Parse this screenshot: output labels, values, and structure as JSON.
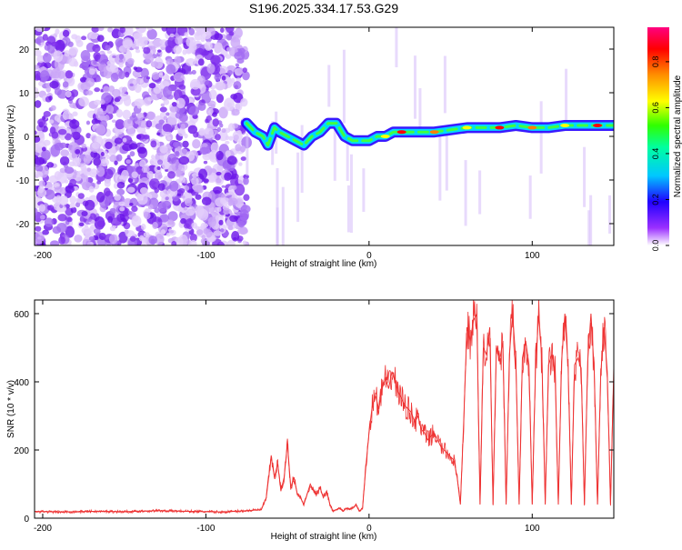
{
  "title": "S196.2025.334.17.53.G29",
  "chart_data": [
    {
      "type": "heatmap",
      "name": "spectrogram",
      "xlabel": "Height of straight line (km)",
      "ylabel": "Frequency (Hz)",
      "xlim": [
        -205,
        150
      ],
      "ylim": [
        -25,
        25
      ],
      "xticks": [
        -200,
        -100,
        0,
        100
      ],
      "xtick_labels": [
        "-200",
        "-100",
        "0",
        "100"
      ],
      "yticks": [
        -20,
        -10,
        0,
        10,
        20
      ],
      "ytick_labels": [
        "-20",
        "-10",
        "0",
        "10",
        "20"
      ],
      "noise_region_x": [
        -205,
        -75
      ],
      "dominant_frequency_trace": {
        "x": [
          -75,
          -70,
          -65,
          -62,
          -58,
          -55,
          -50,
          -45,
          -40,
          -35,
          -30,
          -25,
          -20,
          -15,
          -10,
          -5,
          0,
          5,
          10,
          15,
          20,
          30,
          40,
          50,
          60,
          70,
          80,
          90,
          100,
          110,
          120,
          130,
          140,
          150
        ],
        "y": [
          3,
          1,
          0,
          -2,
          2,
          1,
          0,
          -1,
          -2,
          0,
          1,
          3,
          3,
          0,
          -1,
          -1,
          -1,
          0,
          0,
          1,
          1,
          1,
          1,
          1.5,
          2,
          2,
          2,
          2.5,
          2,
          2,
          2.5,
          2.5,
          2.5,
          2.5
        ]
      },
      "colorbar": {
        "label": "Normalized spectral amplitude",
        "min": 0,
        "max": 0.95,
        "ticks": [
          0.0,
          0.2,
          0.4,
          0.6,
          0.8
        ],
        "tick_labels": [
          "0.0",
          "0.2",
          "0.4",
          "0.6",
          "0.8"
        ]
      },
      "colors": {
        "colormap": [
          "#ffffff",
          "#8000ff",
          "#0000ff",
          "#00ffff",
          "#00ff00",
          "#ffff00",
          "#ff8000",
          "#ff0000",
          "#ff0080"
        ],
        "noise": "#7f1dff"
      }
    },
    {
      "type": "line",
      "name": "snr",
      "xlabel": "Height of straight line (km)",
      "ylabel": "SNR (10 * v/v)",
      "xlim": [
        -205,
        150
      ],
      "ylim": [
        0,
        640
      ],
      "xticks": [
        -200,
        -100,
        0,
        100
      ],
      "xtick_labels": [
        "-200",
        "-100",
        "0",
        "100"
      ],
      "yticks": [
        0,
        200,
        400,
        600
      ],
      "ytick_labels": [
        "0",
        "200",
        "400",
        "600"
      ],
      "line_color": "#ee3333",
      "x": [
        -205,
        -190,
        -170,
        -150,
        -130,
        -110,
        -90,
        -75,
        -66,
        -63,
        -60,
        -58,
        -56,
        -54,
        -52,
        -50,
        -48,
        -46,
        -44,
        -42,
        -40,
        -38,
        -36,
        -34,
        -32,
        -30,
        -28,
        -26,
        -24,
        -22,
        -20,
        -18,
        -16,
        -14,
        -12,
        -10,
        -8,
        -6,
        -4,
        -2,
        0,
        2,
        4,
        6,
        8,
        10,
        12,
        14,
        16,
        18,
        20,
        22,
        24,
        26,
        28,
        30,
        32,
        34,
        36,
        38,
        40,
        42,
        44,
        46,
        48,
        50,
        52,
        54,
        56,
        58,
        60,
        62,
        64,
        66,
        68,
        70,
        72,
        74,
        76,
        78,
        80,
        82,
        84,
        86,
        88,
        90,
        92,
        94,
        96,
        98,
        100,
        102,
        104,
        106,
        108,
        110,
        112,
        114,
        116,
        118,
        120,
        122,
        124,
        126,
        128,
        130,
        132,
        134,
        136,
        138,
        140,
        142,
        144,
        146,
        148,
        150
      ],
      "y": [
        20,
        18,
        20,
        19,
        22,
        20,
        18,
        22,
        25,
        60,
        180,
        120,
        160,
        80,
        120,
        220,
        90,
        120,
        70,
        60,
        40,
        70,
        100,
        80,
        70,
        90,
        60,
        80,
        40,
        20,
        25,
        30,
        20,
        30,
        25,
        30,
        40,
        20,
        30,
        150,
        250,
        330,
        360,
        320,
        380,
        410,
        380,
        430,
        400,
        370,
        350,
        330,
        320,
        310,
        280,
        300,
        260,
        250,
        230,
        240,
        250,
        230,
        210,
        200,
        190,
        180,
        170,
        120,
        40,
        280,
        560,
        520,
        580,
        600,
        40,
        500,
        480,
        560,
        40,
        500,
        460,
        520,
        40,
        480,
        600,
        460,
        40,
        470,
        520,
        450,
        40,
        440,
        600,
        460,
        40,
        450,
        480,
        430,
        40,
        460,
        600,
        440,
        40,
        450,
        470,
        440,
        40,
        460,
        600,
        430,
        40,
        420,
        560,
        430,
        40,
        440
      ]
    }
  ]
}
